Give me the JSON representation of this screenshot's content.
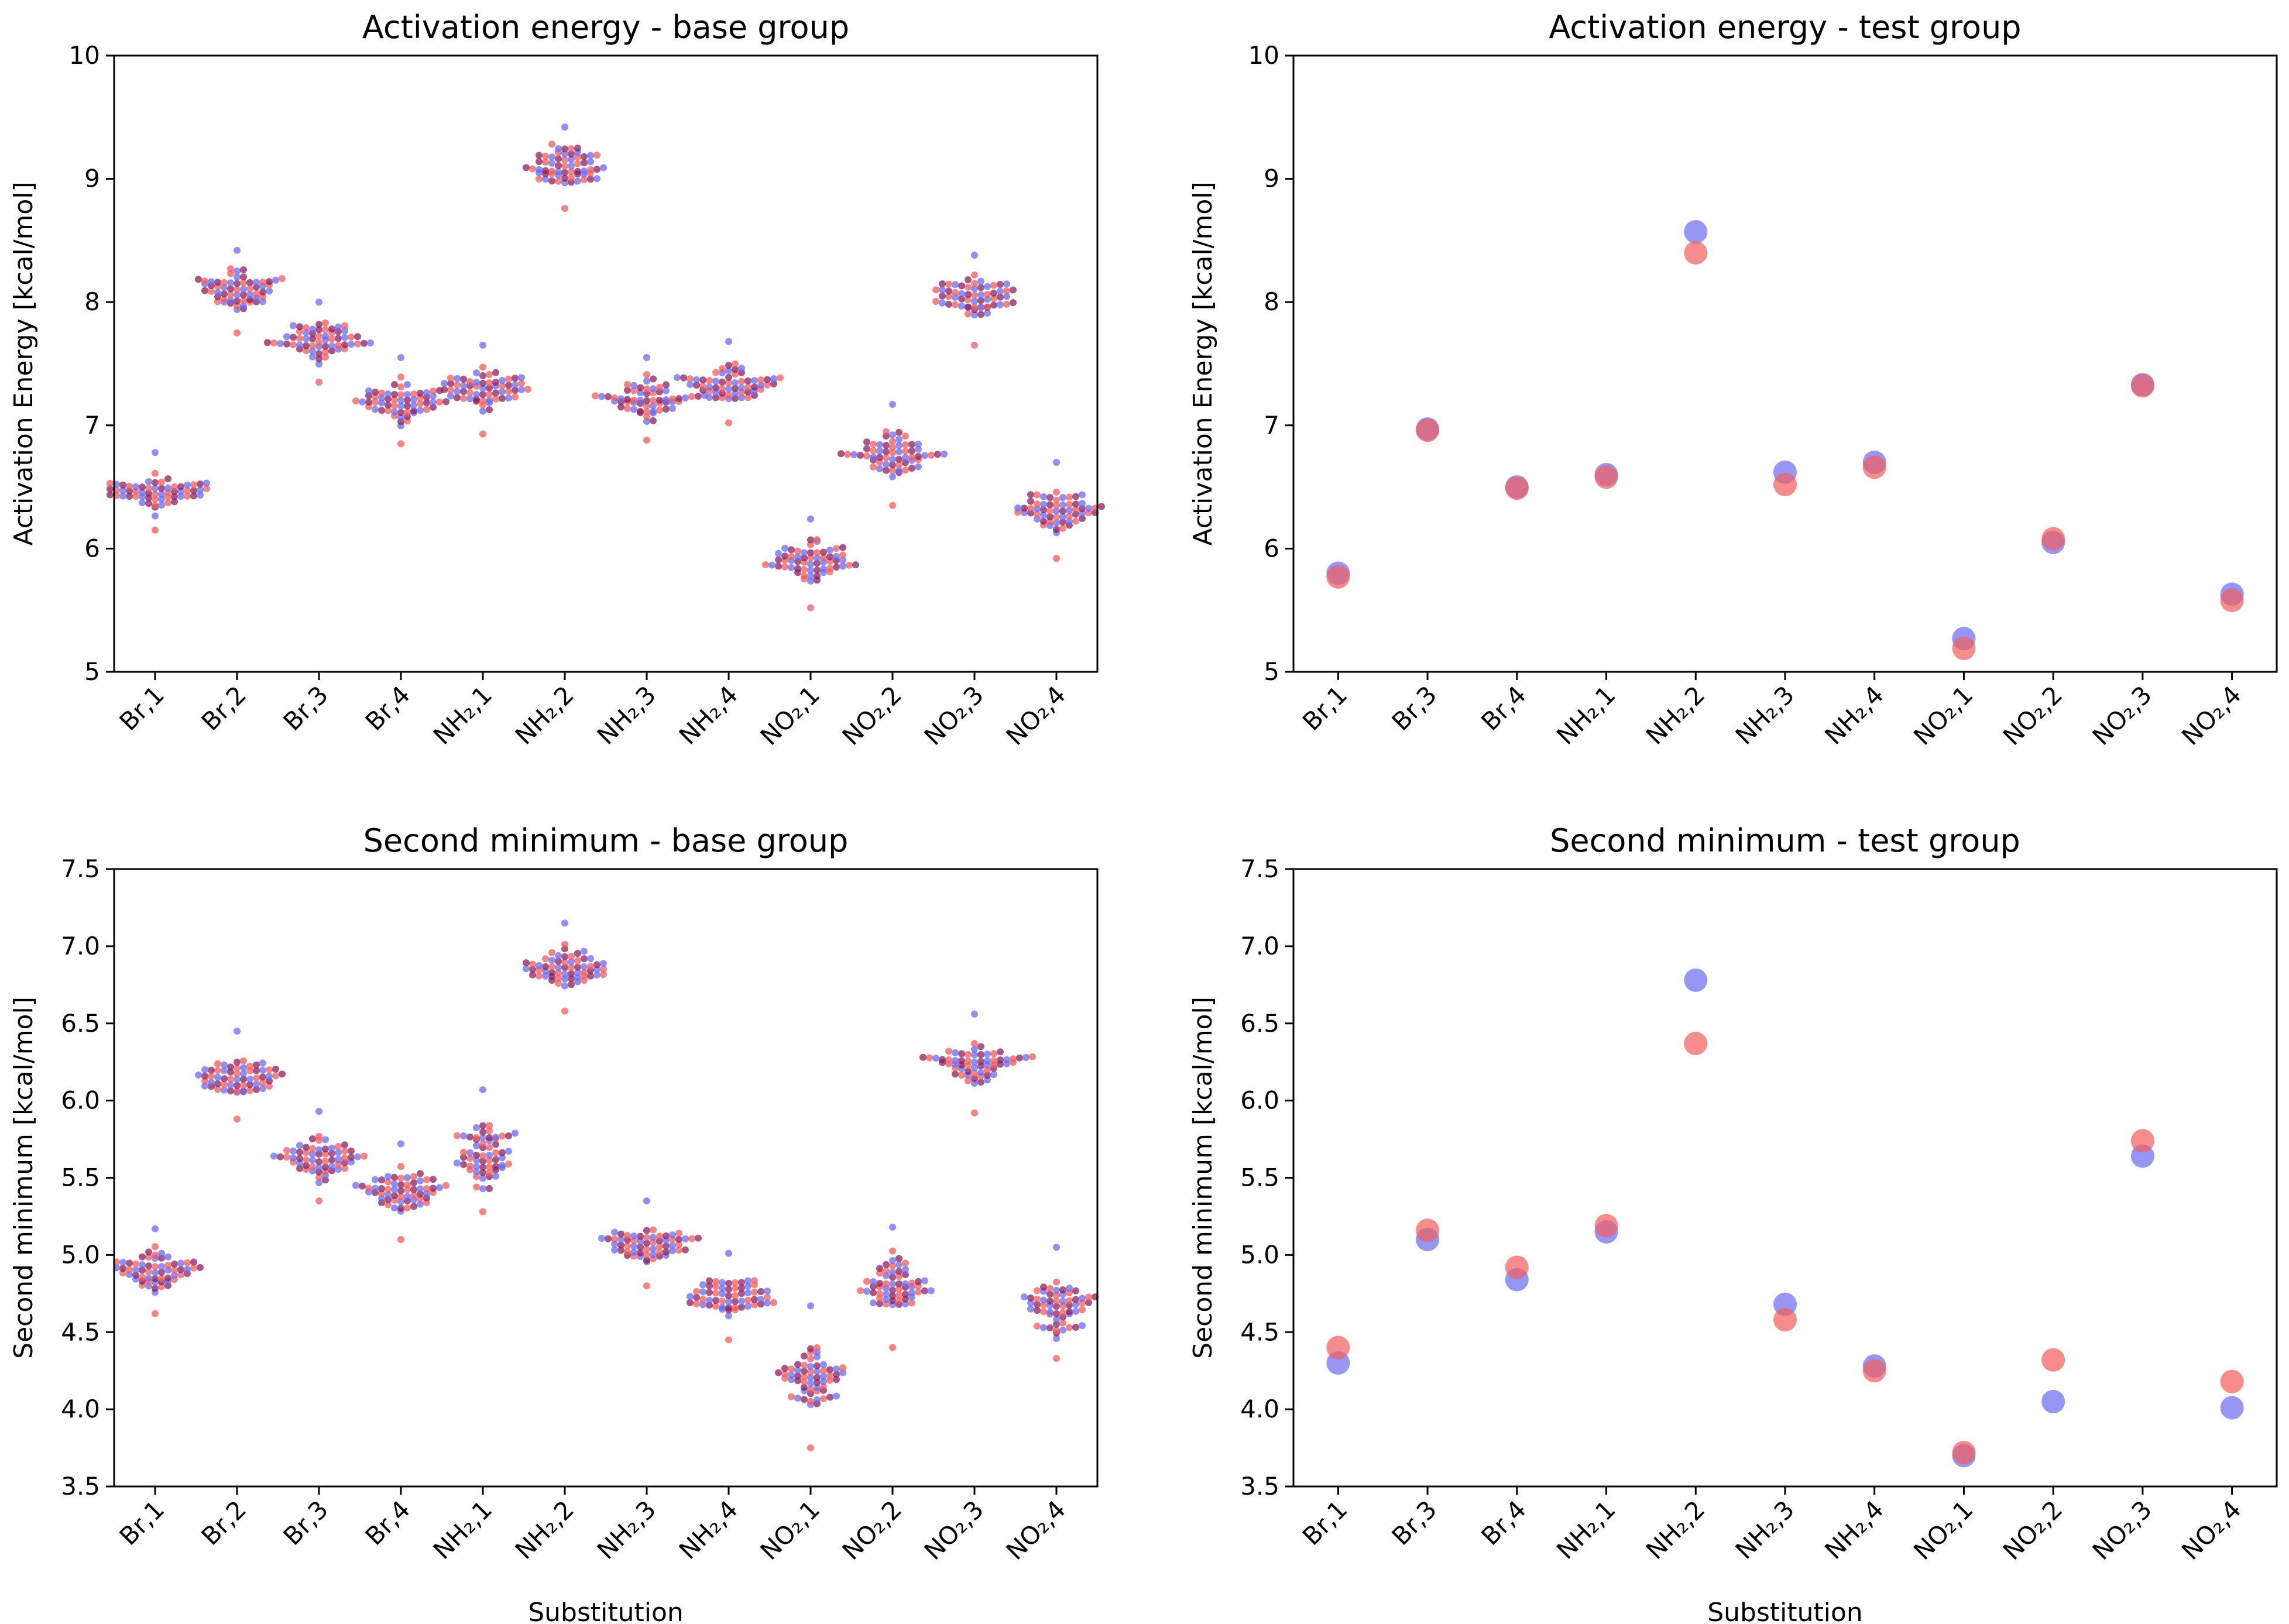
{
  "chart_data": [
    {
      "type": "scatter",
      "style": "swarm",
      "title": "Activation energy - base group",
      "xlabel": "",
      "ylabel": "Activation Energy [kcal/mol]",
      "ylim": [
        5,
        10
      ],
      "yticks": [
        "5",
        "6",
        "7",
        "8",
        "9",
        "10"
      ],
      "categories": [
        "Br,1",
        "Br,2",
        "Br,3",
        "Br,4",
        "NH₂,1",
        "NH₂,2",
        "NH₂,3",
        "NH₂,4",
        "NO₂,1",
        "NO₂,2",
        "NO₂,3",
        "NO₂,4"
      ],
      "distributions": [
        {
          "center": 6.45,
          "min": 6.15,
          "max": 6.78
        },
        {
          "center": 8.1,
          "min": 7.75,
          "max": 8.42
        },
        {
          "center": 7.68,
          "min": 7.35,
          "max": 8.0
        },
        {
          "center": 7.2,
          "min": 6.85,
          "max": 7.55
        },
        {
          "center": 7.3,
          "min": 6.93,
          "max": 7.65
        },
        {
          "center": 9.1,
          "min": 8.76,
          "max": 9.42
        },
        {
          "center": 7.22,
          "min": 6.88,
          "max": 7.55
        },
        {
          "center": 7.33,
          "min": 7.02,
          "max": 7.68
        },
        {
          "center": 5.9,
          "min": 5.52,
          "max": 6.24
        },
        {
          "center": 6.75,
          "min": 6.35,
          "max": 7.17
        },
        {
          "center": 8.02,
          "min": 7.65,
          "max": 8.38
        },
        {
          "center": 6.3,
          "min": 5.92,
          "max": 6.7
        }
      ]
    },
    {
      "type": "scatter",
      "title": "Activation energy - test group",
      "xlabel": "",
      "ylabel": "Activation Energy [kcal/mol]",
      "ylim": [
        5,
        10
      ],
      "yticks": [
        "5",
        "6",
        "7",
        "8",
        "9",
        "10"
      ],
      "categories": [
        "Br,1",
        "Br,3",
        "Br,4",
        "NH₂,1",
        "NH₂,2",
        "NH₂,3",
        "NH₂,4",
        "NO₂,1",
        "NO₂,2",
        "NO₂,3",
        "NO₂,4"
      ],
      "series": [
        {
          "name": "blue",
          "values": [
            5.8,
            6.97,
            6.5,
            6.6,
            8.57,
            6.62,
            6.7,
            5.27,
            6.05,
            7.33,
            5.63
          ]
        },
        {
          "name": "red",
          "values": [
            5.77,
            6.96,
            6.49,
            6.58,
            8.4,
            6.52,
            6.66,
            5.19,
            6.08,
            7.32,
            5.58
          ]
        }
      ]
    },
    {
      "type": "scatter",
      "style": "swarm",
      "title": "Second minimum - base group",
      "xlabel": "Substitution",
      "ylabel": "Second minimum [kcal/mol]",
      "ylim": [
        3.5,
        7.5
      ],
      "yticks": [
        "3.5",
        "4.0",
        "4.5",
        "5.0",
        "5.5",
        "6.0",
        "6.5",
        "7.0",
        "7.5"
      ],
      "categories": [
        "Br,1",
        "Br,2",
        "Br,3",
        "Br,4",
        "NH₂,1",
        "NH₂,2",
        "NH₂,3",
        "NH₂,4",
        "NO₂,1",
        "NO₂,2",
        "NO₂,3",
        "NO₂,4"
      ],
      "distributions": [
        {
          "center": 4.9,
          "min": 4.62,
          "max": 5.17
        },
        {
          "center": 6.15,
          "min": 5.88,
          "max": 6.45
        },
        {
          "center": 5.62,
          "min": 5.35,
          "max": 5.93
        },
        {
          "center": 5.42,
          "min": 5.1,
          "max": 5.72
        },
        {
          "center": 5.65,
          "min": 5.28,
          "max": 6.07
        },
        {
          "center": 6.87,
          "min": 6.58,
          "max": 7.15
        },
        {
          "center": 5.07,
          "min": 4.8,
          "max": 5.35
        },
        {
          "center": 4.73,
          "min": 4.45,
          "max": 5.01
        },
        {
          "center": 4.2,
          "min": 3.75,
          "max": 4.67
        },
        {
          "center": 4.8,
          "min": 4.4,
          "max": 5.18
        },
        {
          "center": 6.25,
          "min": 5.92,
          "max": 6.56
        },
        {
          "center": 4.67,
          "min": 4.33,
          "max": 5.05
        }
      ]
    },
    {
      "type": "scatter",
      "title": "Second minimum - test group",
      "xlabel": "Substitution",
      "ylabel": "Second minimum [kcal/mol]",
      "ylim": [
        3.5,
        7.5
      ],
      "yticks": [
        "3.5",
        "4.0",
        "4.5",
        "5.0",
        "5.5",
        "6.0",
        "6.5",
        "7.0",
        "7.5"
      ],
      "categories": [
        "Br,1",
        "Br,3",
        "Br,4",
        "NH₂,1",
        "NH₂,2",
        "NH₂,3",
        "NH₂,4",
        "NO₂,1",
        "NO₂,2",
        "NO₂,3",
        "NO₂,4"
      ],
      "series": [
        {
          "name": "blue",
          "values": [
            4.3,
            5.1,
            4.84,
            5.15,
            6.78,
            4.68,
            4.28,
            3.7,
            4.05,
            5.64,
            4.01
          ]
        },
        {
          "name": "red",
          "values": [
            4.4,
            5.16,
            4.92,
            5.19,
            6.37,
            4.58,
            4.25,
            3.72,
            4.32,
            5.74,
            4.18
          ]
        }
      ]
    }
  ],
  "colors": {
    "blue": "#6a6af0",
    "red": "#f25c5c",
    "overlap": "#8b1f5e"
  }
}
